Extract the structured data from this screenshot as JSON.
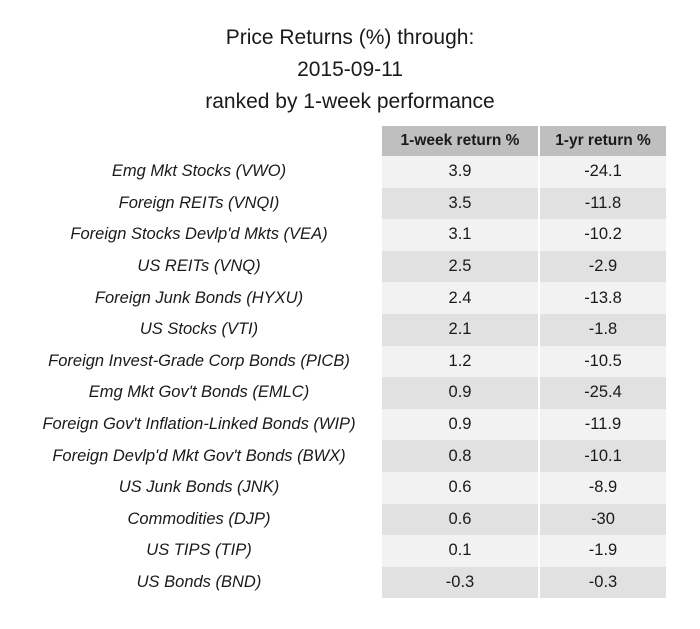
{
  "chart_data": {
    "type": "table",
    "title": [
      "Price Returns (%) through:",
      "2015-09-11",
      "ranked by 1-week performance"
    ],
    "columns": [
      "1-week return %",
      "1-yr return %"
    ],
    "rows": [
      {
        "name": "Emg Mkt Stocks (VWO)",
        "week": "3.9",
        "year": "-24.1"
      },
      {
        "name": "Foreign REITs (VNQI)",
        "week": "3.5",
        "year": "-11.8"
      },
      {
        "name": "Foreign Stocks Devlp'd Mkts (VEA)",
        "week": "3.1",
        "year": "-10.2"
      },
      {
        "name": "US REITs (VNQ)",
        "week": "2.5",
        "year": "-2.9"
      },
      {
        "name": "Foreign Junk Bonds (HYXU)",
        "week": "2.4",
        "year": "-13.8"
      },
      {
        "name": "US Stocks (VTI)",
        "week": "2.1",
        "year": "-1.8"
      },
      {
        "name": "Foreign Invest-Grade Corp Bonds (PICB)",
        "week": "1.2",
        "year": "-10.5"
      },
      {
        "name": "Emg Mkt Gov't Bonds (EMLC)",
        "week": "0.9",
        "year": "-25.4"
      },
      {
        "name": "Foreign Gov't Inflation-Linked Bonds (WIP)",
        "week": "0.9",
        "year": "-11.9"
      },
      {
        "name": "Foreign Devlp'd Mkt Gov't Bonds (BWX)",
        "week": "0.8",
        "year": "-10.1"
      },
      {
        "name": "US Junk Bonds (JNK)",
        "week": "0.6",
        "year": "-8.9"
      },
      {
        "name": "Commodities (DJP)",
        "week": "0.6",
        "year": "-30"
      },
      {
        "name": "US TIPS (TIP)",
        "week": "0.1",
        "year": "-1.9"
      },
      {
        "name": "US Bonds (BND)",
        "week": "-0.3",
        "year": "-0.3"
      }
    ]
  }
}
